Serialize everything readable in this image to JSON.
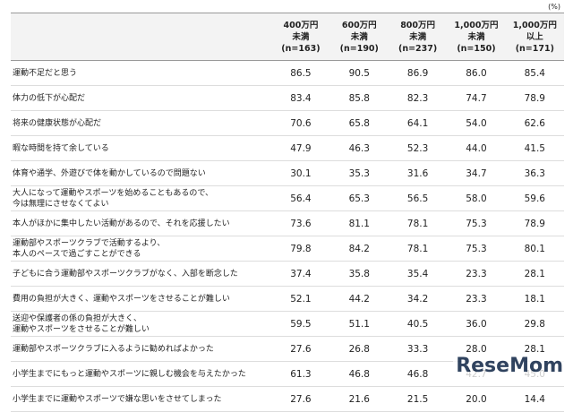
{
  "unit": "(%)",
  "table": {
    "columns": [
      "400万円\n未満\n(n=163)",
      "600万円\n未満\n(n=190)",
      "800万円\n未満\n(n=237)",
      "1,000万円\n未満\n(n=150)",
      "1,000万円\n以上\n(n=171)"
    ],
    "rows": [
      [
        "運動不足だと思う",
        "86.5",
        "90.5",
        "86.9",
        "86.0",
        "85.4"
      ],
      [
        "体力の低下が心配だ",
        "83.4",
        "85.8",
        "82.3",
        "74.7",
        "78.9"
      ],
      [
        "将来の健康状態が心配だ",
        "70.6",
        "65.8",
        "64.1",
        "54.0",
        "62.6"
      ],
      [
        "暇な時間を持て余している",
        "47.9",
        "46.3",
        "52.3",
        "44.0",
        "41.5"
      ],
      [
        "体育や通学、外遊びで体を動かしているので問題ない",
        "30.1",
        "35.3",
        "31.6",
        "34.7",
        "36.3"
      ],
      [
        "大人になって運動やスポーツを始めることもあるので、\n今は無理にさせなくてよい",
        "56.4",
        "65.3",
        "56.5",
        "58.0",
        "59.6"
      ],
      [
        "本人がほかに集中したい活動があるので、それを応援したい",
        "73.6",
        "81.1",
        "78.1",
        "75.3",
        "78.9"
      ],
      [
        "運動部やスポーツクラブで活動するより、\n本人のペースで過ごすことができる",
        "79.8",
        "84.2",
        "78.1",
        "75.3",
        "80.1"
      ],
      [
        "子どもに合う運動部やスポーツクラブがなく、入部を断念した",
        "37.4",
        "35.8",
        "35.4",
        "23.3",
        "28.1"
      ],
      [
        "費用の負担が大きく、運動やスポーツをさせることが難しい",
        "52.1",
        "44.2",
        "34.2",
        "23.3",
        "18.1"
      ],
      [
        "送迎や保護者の係の負担が大きく、\n運動やスポーツをさせることが難しい",
        "59.5",
        "51.1",
        "40.5",
        "36.0",
        "29.8"
      ],
      [
        "運動部やスポーツクラブに入るように勧めればよかった",
        "27.6",
        "26.8",
        "33.3",
        "28.0",
        "28.1"
      ],
      [
        "小学生までにもっと運動やスポーツに親しむ機会を与えたかった",
        "61.3",
        "46.8",
        "46.8",
        "42.7",
        "45.0"
      ],
      [
        "小学生までに運動やスポーツで嫌な思いをさせてしまった",
        "27.6",
        "21.6",
        "21.5",
        "20.0",
        "14.4"
      ]
    ]
  },
  "watermark": "ReseMom"
}
